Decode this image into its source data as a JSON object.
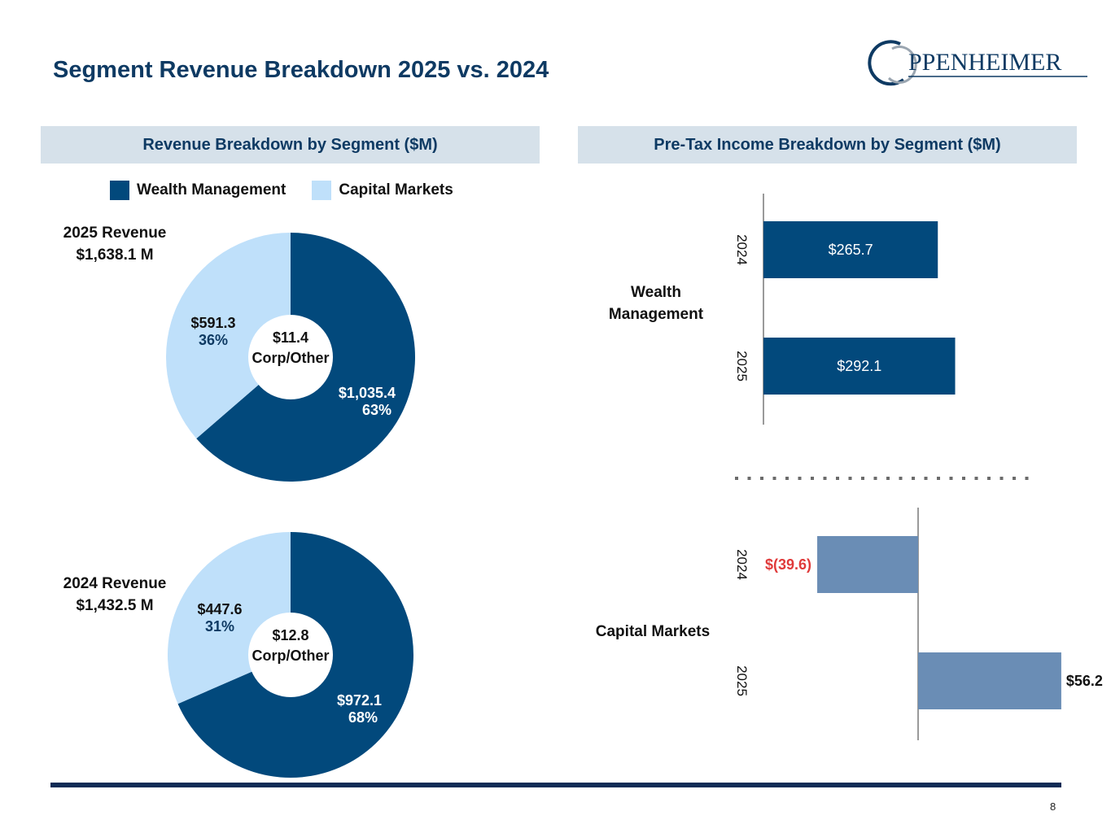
{
  "page": {
    "title": "Segment Revenue Breakdown 2025 vs. 2024",
    "page_number": "8",
    "logo_text": "PPENHEIMER"
  },
  "colors": {
    "wealth": "#02497c",
    "capital": "#bfe0fa",
    "capital_bar": "#6a8db5",
    "negative_text": "#e03a3a",
    "dark_text": "#0e3a63"
  },
  "revenue_panel": {
    "header": "Revenue Breakdown by Segment ($M)",
    "legend": {
      "wealth": "Wealth Management",
      "capital": "Capital Markets"
    },
    "rev2025": {
      "line1": "2025 Revenue",
      "line2": "$1,638.1 M"
    },
    "rev2024": {
      "line1": "2024 Revenue",
      "line2": "$1,432.5 M"
    }
  },
  "pretax_panel": {
    "header": "Pre-Tax Income Breakdown by Segment ($M)",
    "wealth_label_1": "Wealth",
    "wealth_label_2": "Management",
    "capital_label": "Capital Markets"
  },
  "chart_data": [
    {
      "type": "pie",
      "title": "2025 Revenue $1,638.1 M",
      "categories": [
        "Wealth Management",
        "Capital Markets"
      ],
      "values": [
        1035.4,
        591.3
      ],
      "value_labels": [
        "$1,035.4",
        "$591.3"
      ],
      "percent_labels": [
        "63%",
        "36%"
      ],
      "center_value": "$11.4",
      "center_label": "Corp/Other"
    },
    {
      "type": "pie",
      "title": "2024 Revenue $1,432.5 M",
      "categories": [
        "Wealth Management",
        "Capital Markets"
      ],
      "values": [
        972.1,
        447.6
      ],
      "value_labels": [
        "$972.1",
        "$447.6"
      ],
      "percent_labels": [
        "68%",
        "31%"
      ],
      "center_value": "$12.8",
      "center_label": "Corp/Other"
    },
    {
      "type": "bar",
      "title": "Wealth Management",
      "categories": [
        "2024",
        "2025"
      ],
      "values": [
        265.7,
        292.1
      ],
      "value_labels": [
        "$265.7",
        "$292.1"
      ]
    },
    {
      "type": "bar",
      "title": "Capital Markets",
      "categories": [
        "2024",
        "2025"
      ],
      "values": [
        -39.6,
        56.2
      ],
      "value_labels": [
        "$(39.6)",
        "$56.2"
      ]
    }
  ]
}
